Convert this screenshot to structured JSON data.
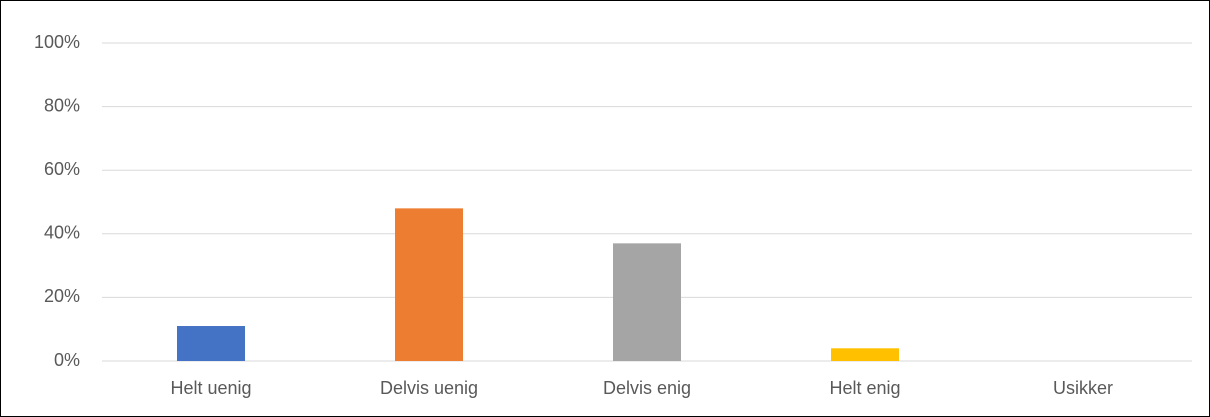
{
  "chart_data": {
    "type": "bar",
    "categories": [
      "Helt uenig",
      "Delvis uenig",
      "Delvis enig",
      "Helt enig",
      "Usikker"
    ],
    "values": [
      11,
      48,
      37,
      4,
      0
    ],
    "colors": [
      "#4472c4",
      "#ed7d31",
      "#a5a5a5",
      "#ffc000",
      "#5b9bd5"
    ],
    "ylim": [
      0,
      100
    ],
    "yticks": [
      {
        "value": 0,
        "label": "0%"
      },
      {
        "value": 20,
        "label": "20%"
      },
      {
        "value": 40,
        "label": "40%"
      },
      {
        "value": 60,
        "label": "60%"
      },
      {
        "value": 80,
        "label": "80%"
      },
      {
        "value": 100,
        "label": "100%"
      }
    ],
    "grid": true
  }
}
